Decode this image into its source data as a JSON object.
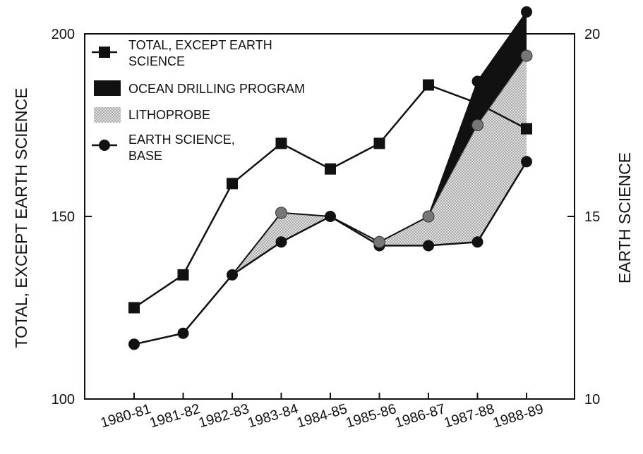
{
  "chart_data": {
    "type": "line",
    "categories": [
      "1980-81",
      "1981-82",
      "1982-83",
      "1983-84",
      "1984-85",
      "1985-86",
      "1986-87",
      "1987-88",
      "1988-89"
    ],
    "ylabel_left": "TOTAL, EXCEPT EARTH SCIENCE",
    "ylabel_right": "EARTH SCIENCE",
    "ylim_left": [
      100,
      200
    ],
    "ylim_right": [
      10,
      20
    ],
    "yticks_left": [
      "100",
      "150",
      "200"
    ],
    "yticks_right": [
      "10",
      "15",
      "20"
    ],
    "grid": false,
    "legend_position": "top-left",
    "legend": {
      "total_line1": "TOTAL, EXCEPT EARTH",
      "total_line2": "SCIENCE",
      "odp": "OCEAN DRILLING PROGRAM",
      "litho": "LITHOPROBE",
      "earth_line1": "EARTH SCIENCE,",
      "earth_line2": "BASE"
    },
    "series": [
      {
        "key": "total",
        "axis": "left",
        "marker": "square",
        "values": [
          125,
          134,
          159,
          170,
          163,
          170,
          186,
          181,
          174
        ]
      },
      {
        "key": "earth_base",
        "axis": "right",
        "marker": "circle",
        "values": [
          11.5,
          11.8,
          13.4,
          14.3,
          15.0,
          14.2,
          14.2,
          14.3,
          16.5
        ]
      },
      {
        "key": "base_plus_lithoprobe",
        "axis": "right",
        "marker": "circle",
        "values": [
          11.5,
          11.8,
          13.4,
          15.1,
          15.0,
          14.3,
          15.0,
          17.5,
          19.4
        ]
      },
      {
        "key": "base_plus_lithoprobe_plus_odp",
        "axis": "right",
        "marker": "circle",
        "values": [
          11.5,
          11.8,
          13.4,
          15.1,
          15.0,
          14.3,
          15.0,
          18.7,
          20.6
        ]
      }
    ],
    "colors": {
      "line": "#111111",
      "odp_fill": "#111111",
      "litho_fill": "#c8c8c8"
    }
  }
}
